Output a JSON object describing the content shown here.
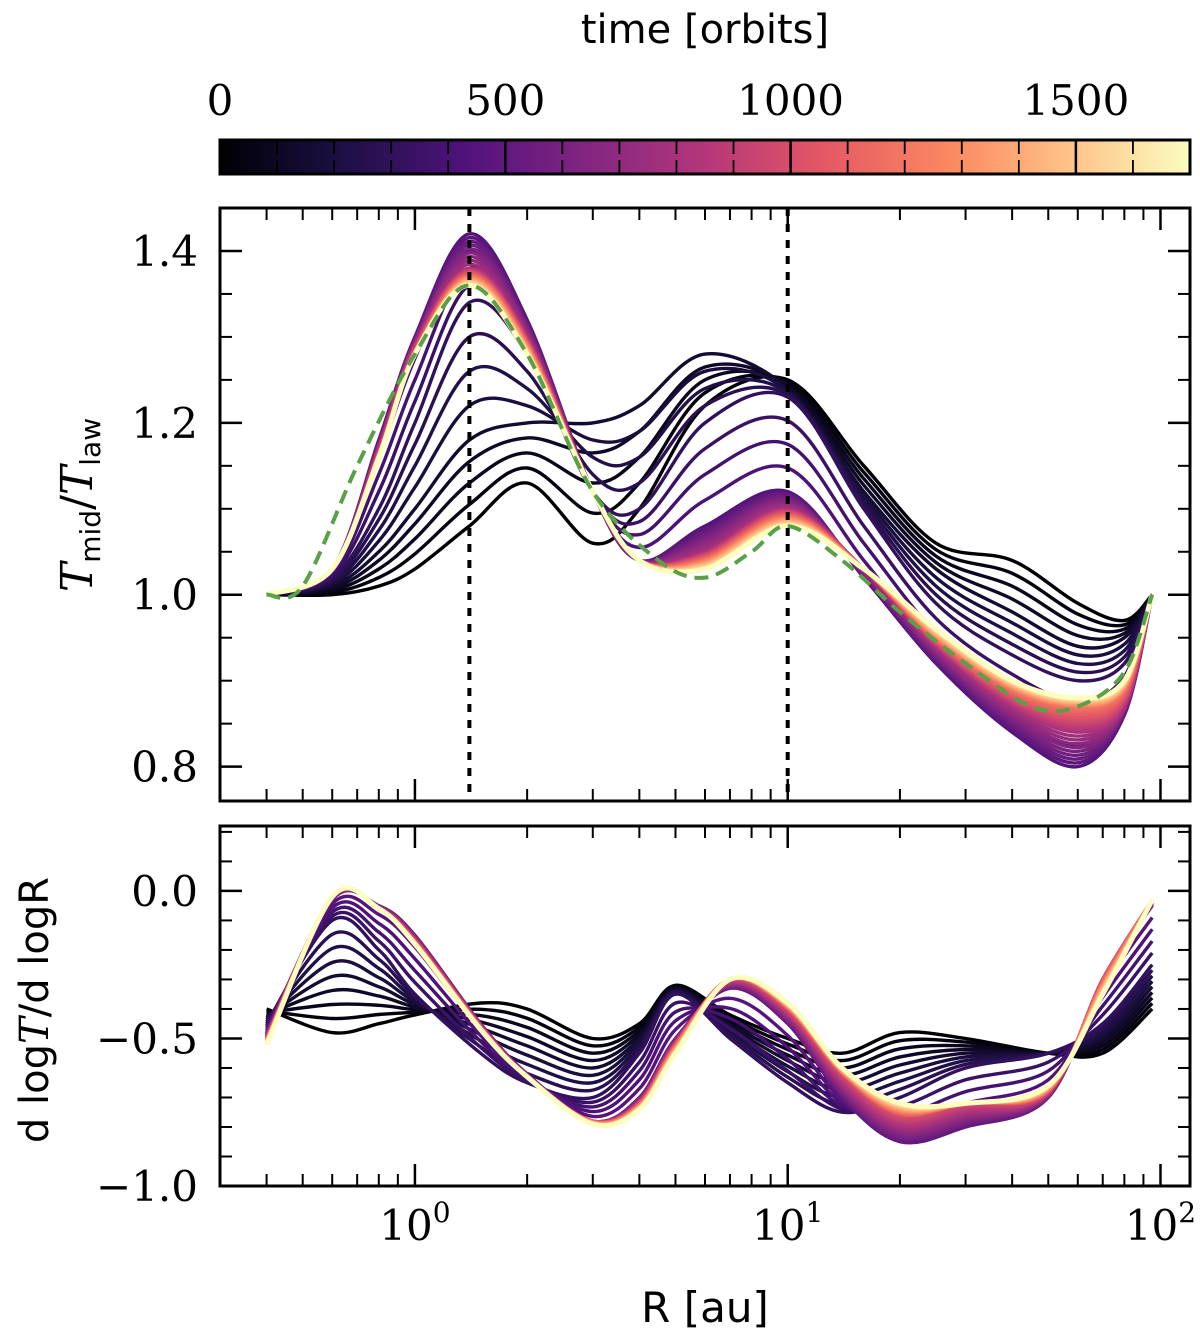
{
  "figure": {
    "colorbar": {
      "label": "time [orbits]",
      "range": [
        0,
        1700
      ],
      "ticks": [
        0,
        500,
        1000,
        1500
      ],
      "tick_labels": [
        "0",
        "500",
        "1000",
        "1500"
      ],
      "colormap": "magma",
      "colormap_stops": [
        "#000004",
        "#1c1044",
        "#4f127b",
        "#812581",
        "#b5367a",
        "#e55964",
        "#fb8761",
        "#fec287",
        "#fcfdbf"
      ]
    }
  },
  "chart_data": [
    {
      "type": "line",
      "panel": "top",
      "ylabel_parts": {
        "T1": "T",
        "sub1": "mid",
        "slash": "/",
        "T2": "T",
        "sub2": "law"
      },
      "xlabel": "",
      "xscale": "log",
      "xlim": [
        0.3,
        120
      ],
      "ylim": [
        0.76,
        1.45
      ],
      "yticks": [
        0.8,
        1.0,
        1.2,
        1.4
      ],
      "ytick_labels": [
        "0.8",
        "1.0",
        "1.2",
        "1.4"
      ],
      "vlines": [
        1.4,
        10
      ],
      "vline_style": "dotted-black",
      "reference_curve": {
        "name": "analytic-steady-state",
        "style": "green-dashed",
        "color": "#5aa048",
        "x": [
          0.4,
          0.5,
          0.7,
          1.0,
          1.4,
          2.0,
          3.0,
          4.5,
          6.0,
          8.0,
          10.0,
          14.0,
          20.0,
          30.0,
          45.0,
          60.0,
          80.0,
          95.0
        ],
        "y": [
          1.0,
          1.01,
          1.15,
          1.28,
          1.36,
          1.28,
          1.12,
          1.04,
          1.02,
          1.05,
          1.08,
          1.04,
          0.98,
          0.92,
          0.87,
          0.87,
          0.91,
          1.0
        ]
      },
      "series": [
        {
          "name": "early",
          "time": 0,
          "x": [
            0.4,
            0.6,
            0.8,
            1.0,
            1.4,
            2.0,
            3.0,
            4.0,
            6.0,
            10.0,
            16.0,
            25.0,
            40.0,
            60.0,
            80.0,
            95.0
          ],
          "y": [
            1.0,
            1.0,
            1.01,
            1.03,
            1.08,
            1.13,
            1.06,
            1.1,
            1.22,
            1.25,
            1.15,
            1.06,
            1.04,
            0.99,
            0.97,
            1.0
          ]
        },
        {
          "name": "t150",
          "time": 150,
          "x": [
            0.4,
            0.6,
            0.8,
            1.0,
            1.4,
            2.0,
            3.0,
            4.0,
            6.0,
            10.0,
            16.0,
            25.0,
            40.0,
            60.0,
            80.0,
            95.0
          ],
          "y": [
            1.0,
            1.01,
            1.05,
            1.1,
            1.18,
            1.2,
            1.2,
            1.22,
            1.28,
            1.24,
            1.12,
            1.03,
            0.98,
            0.94,
            0.95,
            1.0
          ]
        },
        {
          "name": "t300",
          "time": 300,
          "x": [
            0.4,
            0.6,
            0.8,
            1.0,
            1.4,
            2.0,
            3.0,
            4.0,
            6.0,
            10.0,
            16.0,
            25.0,
            40.0,
            60.0,
            80.0,
            95.0
          ],
          "y": [
            1.0,
            1.02,
            1.1,
            1.2,
            1.34,
            1.28,
            1.12,
            1.1,
            1.2,
            1.23,
            1.1,
            0.99,
            0.93,
            0.9,
            0.92,
            1.0
          ]
        },
        {
          "name": "t450",
          "time": 450,
          "x": [
            0.4,
            0.6,
            0.8,
            1.0,
            1.4,
            2.0,
            3.0,
            4.0,
            6.0,
            10.0,
            16.0,
            25.0,
            40.0,
            60.0,
            80.0,
            95.0
          ],
          "y": [
            1.0,
            1.03,
            1.18,
            1.3,
            1.42,
            1.32,
            1.12,
            1.04,
            1.08,
            1.12,
            1.02,
            0.92,
            0.84,
            0.8,
            0.86,
            1.0
          ]
        },
        {
          "name": "t800",
          "time": 800,
          "x": [
            0.4,
            0.6,
            0.8,
            1.0,
            1.4,
            2.0,
            3.0,
            4.0,
            6.0,
            10.0,
            16.0,
            25.0,
            40.0,
            60.0,
            80.0,
            95.0
          ],
          "y": [
            1.0,
            1.03,
            1.17,
            1.29,
            1.38,
            1.3,
            1.12,
            1.04,
            1.05,
            1.1,
            1.03,
            0.94,
            0.87,
            0.84,
            0.87,
            1.0
          ]
        },
        {
          "name": "t1200",
          "time": 1200,
          "x": [
            0.4,
            0.6,
            0.8,
            1.0,
            1.4,
            2.0,
            3.0,
            4.0,
            6.0,
            10.0,
            16.0,
            25.0,
            40.0,
            60.0,
            80.0,
            95.0
          ],
          "y": [
            1.0,
            1.03,
            1.16,
            1.28,
            1.37,
            1.29,
            1.12,
            1.04,
            1.04,
            1.09,
            1.03,
            0.95,
            0.89,
            0.87,
            0.89,
            1.0
          ]
        },
        {
          "name": "t1650",
          "time": 1650,
          "x": [
            0.4,
            0.6,
            0.8,
            1.0,
            1.4,
            2.0,
            3.0,
            4.0,
            6.0,
            10.0,
            16.0,
            25.0,
            40.0,
            60.0,
            80.0,
            95.0
          ],
          "y": [
            1.0,
            1.03,
            1.16,
            1.28,
            1.36,
            1.28,
            1.12,
            1.04,
            1.03,
            1.08,
            1.03,
            0.96,
            0.9,
            0.88,
            0.9,
            1.0
          ]
        }
      ]
    },
    {
      "type": "line",
      "panel": "bottom",
      "ylabel_parts": {
        "d1": "d log",
        "T": "T",
        "rest": "/d logR"
      },
      "xlabel": "R [au]",
      "xscale": "log",
      "xlim": [
        0.3,
        120
      ],
      "ylim": [
        -1.0,
        0.22
      ],
      "yticks": [
        -1.0,
        -0.5,
        0.0
      ],
      "ytick_labels": [
        "−1.0",
        "−0.5",
        "0.0"
      ],
      "xticks": [
        1,
        10,
        100
      ],
      "xtick_labels": [
        {
          "base": "10",
          "exp": "0"
        },
        {
          "base": "10",
          "exp": "1"
        },
        {
          "base": "10",
          "exp": "2"
        }
      ],
      "series": [
        {
          "name": "early",
          "time": 0,
          "x": [
            0.4,
            0.6,
            0.8,
            1.0,
            1.5,
            2.0,
            3.0,
            4.0,
            5.0,
            7.0,
            10.0,
            14.0,
            20.0,
            30.0,
            50.0,
            70.0,
            95.0
          ],
          "y": [
            -0.4,
            -0.48,
            -0.45,
            -0.42,
            -0.38,
            -0.4,
            -0.5,
            -0.45,
            -0.32,
            -0.42,
            -0.5,
            -0.55,
            -0.48,
            -0.5,
            -0.55,
            -0.55,
            -0.4
          ]
        },
        {
          "name": "t300",
          "time": 300,
          "x": [
            0.4,
            0.6,
            0.8,
            1.0,
            1.5,
            2.0,
            3.0,
            4.0,
            5.0,
            7.0,
            10.0,
            14.0,
            20.0,
            30.0,
            50.0,
            70.0,
            95.0
          ],
          "y": [
            -0.45,
            -0.1,
            -0.2,
            -0.35,
            -0.55,
            -0.65,
            -0.7,
            -0.55,
            -0.35,
            -0.5,
            -0.65,
            -0.75,
            -0.7,
            -0.6,
            -0.55,
            -0.45,
            -0.25
          ]
        },
        {
          "name": "t500",
          "time": 500,
          "x": [
            0.4,
            0.6,
            0.8,
            1.0,
            1.5,
            2.0,
            3.0,
            4.0,
            5.0,
            7.0,
            10.0,
            14.0,
            20.0,
            30.0,
            50.0,
            70.0,
            95.0
          ],
          "y": [
            -0.48,
            -0.03,
            -0.05,
            -0.15,
            -0.45,
            -0.62,
            -0.78,
            -0.7,
            -0.5,
            -0.33,
            -0.45,
            -0.7,
            -0.85,
            -0.8,
            -0.7,
            -0.3,
            -0.05
          ]
        },
        {
          "name": "t1000",
          "time": 1000,
          "x": [
            0.4,
            0.6,
            0.8,
            1.0,
            1.5,
            2.0,
            3.0,
            4.0,
            5.0,
            7.0,
            10.0,
            14.0,
            20.0,
            30.0,
            50.0,
            70.0,
            95.0
          ],
          "y": [
            -0.5,
            -0.02,
            -0.06,
            -0.17,
            -0.46,
            -0.63,
            -0.78,
            -0.72,
            -0.52,
            -0.3,
            -0.4,
            -0.62,
            -0.76,
            -0.72,
            -0.68,
            -0.3,
            -0.03
          ]
        },
        {
          "name": "t1650",
          "time": 1650,
          "x": [
            0.4,
            0.6,
            0.8,
            1.0,
            1.5,
            2.0,
            3.0,
            4.0,
            5.0,
            7.0,
            10.0,
            14.0,
            20.0,
            30.0,
            50.0,
            70.0,
            95.0
          ],
          "y": [
            -0.52,
            -0.02,
            -0.06,
            -0.18,
            -0.47,
            -0.63,
            -0.79,
            -0.74,
            -0.55,
            -0.3,
            -0.38,
            -0.6,
            -0.72,
            -0.72,
            -0.66,
            -0.35,
            -0.03
          ]
        }
      ]
    }
  ]
}
